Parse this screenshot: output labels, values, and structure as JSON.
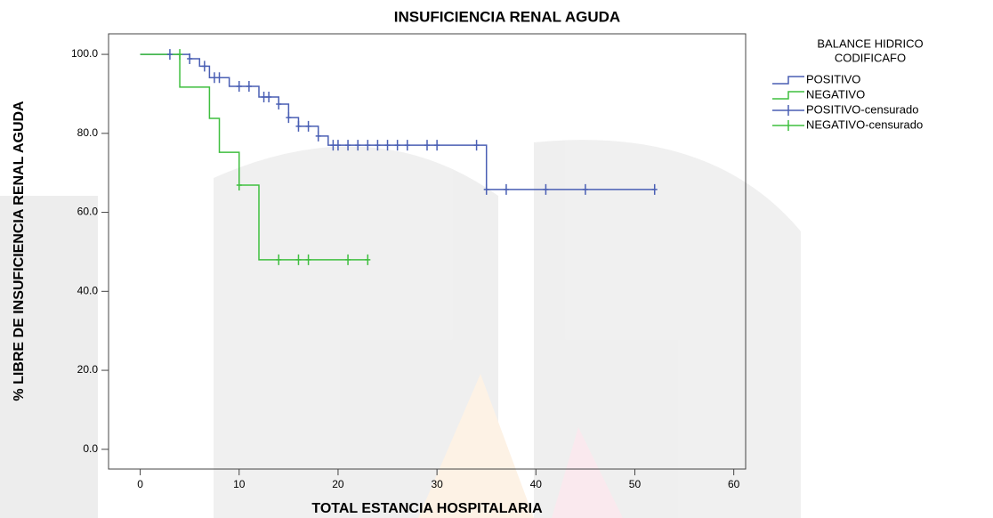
{
  "chart_data": {
    "type": "kaplan-meier",
    "title": "INSUFICIENCIA RENAL AGUDA",
    "x_label": "TOTAL ESTANCIA HOSPITALARIA",
    "y_label": "% LIBRE DE INSUFICIENCIA RENAL AGUDA",
    "legend_title": [
      "BALANCE HIDRICO",
      "CODIFICAFO"
    ],
    "xlim": [
      -3.2,
      61.2
    ],
    "ylim": [
      -5,
      105.2
    ],
    "xticks": [
      0,
      10,
      20,
      30,
      40,
      50,
      60
    ],
    "yticks": [
      {
        "value": 0,
        "label": "0.0"
      },
      {
        "value": 20,
        "label": "20.0"
      },
      {
        "value": 40,
        "label": "40.0"
      },
      {
        "value": 60,
        "label": "60.0"
      },
      {
        "value": 80,
        "label": "80.0"
      },
      {
        "value": 100,
        "label": "100.0"
      }
    ],
    "series": [
      {
        "name": "POSITIVO",
        "style": "step",
        "color": "#4a5fb4",
        "x": [
          0,
          5,
          6,
          7,
          9,
          12,
          14,
          15,
          16,
          18,
          19,
          35,
          52
        ],
        "values": [
          100,
          98.9,
          97,
          94.1,
          91.9,
          89.2,
          87.4,
          84,
          81.8,
          79.3,
          77,
          65.8,
          65.8
        ]
      },
      {
        "name": "NEGATIVO",
        "style": "step",
        "color": "#3fbf3f",
        "x": [
          0,
          4,
          7,
          8,
          10,
          12,
          23
        ],
        "values": [
          100,
          91.7,
          83.8,
          75.2,
          66.9,
          48,
          48
        ]
      },
      {
        "name": "POSITIVO-censurado",
        "style": "censor",
        "color": "#4a5fb4",
        "x": [
          3,
          5,
          6.5,
          7.5,
          8,
          10,
          11,
          12.5,
          13,
          14,
          15,
          16,
          17,
          18,
          19.5,
          20,
          21,
          22,
          23,
          24,
          25,
          26,
          27,
          29,
          30,
          34,
          35,
          37,
          41,
          45,
          52
        ],
        "values": [
          100,
          98.9,
          97,
          94.1,
          94.1,
          91.9,
          91.9,
          89.2,
          89.2,
          87.4,
          84,
          81.8,
          81.8,
          79.3,
          77,
          77,
          77,
          77,
          77,
          77,
          77,
          77,
          77,
          77,
          77,
          77,
          65.8,
          65.8,
          65.8,
          65.8,
          65.8
        ]
      },
      {
        "name": "NEGATIVO-censurado",
        "style": "censor",
        "color": "#3fbf3f",
        "x": [
          4,
          10,
          14,
          16,
          17,
          21,
          23
        ],
        "values": [
          100,
          66.9,
          48,
          48,
          48,
          48,
          48
        ]
      }
    ]
  }
}
